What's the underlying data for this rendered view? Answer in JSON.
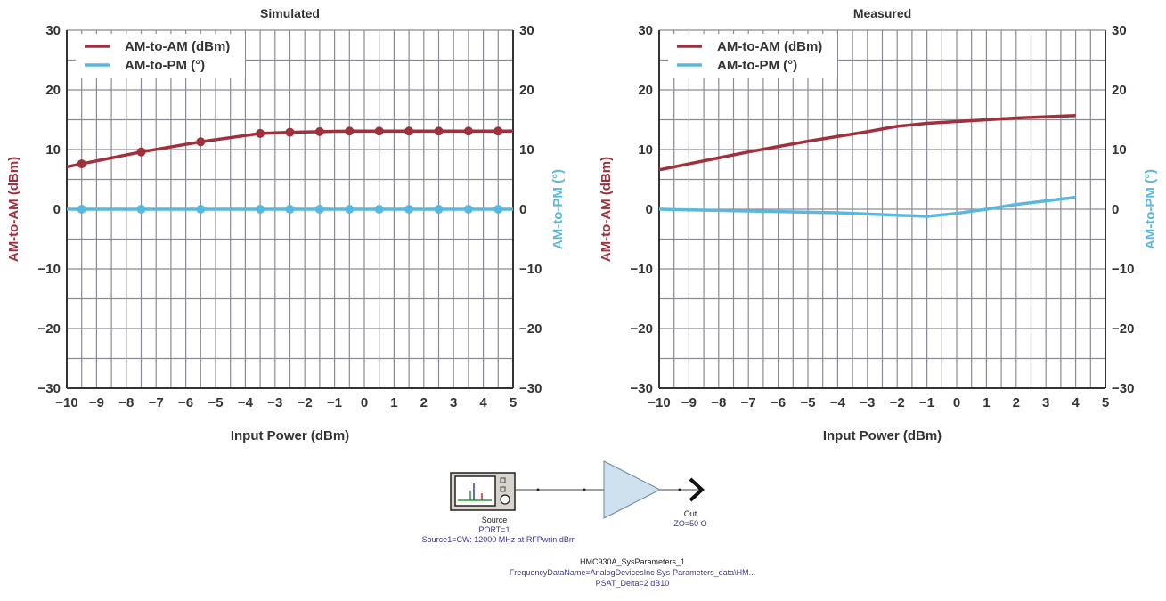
{
  "chart_data": [
    {
      "type": "line",
      "title": "Simulated",
      "xlabel": "Input Power (dBm)",
      "ylabel": "AM-to-AM (dBm)",
      "y2label": "AM-to-PM (°)",
      "xlim": [
        -10,
        5
      ],
      "ylim": [
        -30,
        30
      ],
      "y2lim": [
        -30,
        30
      ],
      "xticks": [
        "−10",
        "−9",
        "−8",
        "−7",
        "−6",
        "−5",
        "−4",
        "−3",
        "−2",
        "−1",
        "0",
        "1",
        "2",
        "3",
        "4",
        "5"
      ],
      "yticks": [
        "30",
        "20",
        "10",
        "0",
        "−10",
        "−20",
        "−30"
      ],
      "grid": true,
      "legend": "top-left",
      "markers": true,
      "series": [
        {
          "name": "AM-to-AM (dBm)",
          "color": "#a0303c",
          "x": [
            -10,
            -9.5,
            -7.5,
            -5.5,
            -3.5,
            -2.5,
            -1.5,
            -0.5,
            0.5,
            1.5,
            2.5,
            3.5,
            4.5,
            5
          ],
          "y": [
            7.1,
            7.6,
            9.6,
            11.3,
            12.7,
            12.9,
            13.0,
            13.1,
            13.1,
            13.1,
            13.1,
            13.1,
            13.1,
            13.1
          ],
          "marker_x": [
            -9.5,
            -7.5,
            -5.5,
            -3.5,
            -2.5,
            -1.5,
            -0.5,
            0.5,
            1.5,
            2.5,
            3.5,
            4.5
          ]
        },
        {
          "name": "AM-to-PM (°)",
          "color": "#5ab8de",
          "x": [
            -10,
            -9.5,
            -7.5,
            -5.5,
            -3.5,
            -2.5,
            -1.5,
            -0.5,
            0.5,
            1.5,
            2.5,
            3.5,
            4.5,
            5
          ],
          "y": [
            0,
            0,
            0,
            0,
            0,
            0,
            0,
            0,
            0,
            0,
            0,
            0,
            0,
            0
          ],
          "marker_x": [
            -9.5,
            -7.5,
            -5.5,
            -3.5,
            -2.5,
            -1.5,
            -0.5,
            0.5,
            1.5,
            2.5,
            3.5,
            4.5
          ]
        }
      ]
    },
    {
      "type": "line",
      "title": "Measured",
      "xlabel": "Input Power (dBm)",
      "ylabel": "AM-to-AM (dBm)",
      "y2label": "AM-to-PM (°)",
      "xlim": [
        -10,
        5
      ],
      "ylim": [
        -30,
        30
      ],
      "y2lim": [
        -30,
        30
      ],
      "xticks": [
        "−10",
        "−9",
        "−8",
        "−7",
        "−6",
        "−5",
        "−4",
        "−3",
        "−2",
        "−1",
        "0",
        "1",
        "2",
        "3",
        "4",
        "5"
      ],
      "yticks": [
        "30",
        "20",
        "10",
        "0",
        "−10",
        "−20",
        "−30"
      ],
      "grid": true,
      "legend": "top-left",
      "markers": false,
      "series": [
        {
          "name": "AM-to-AM (dBm)",
          "color": "#a0303c",
          "x": [
            -10,
            -9,
            -8,
            -7,
            -6,
            -5,
            -4,
            -3,
            -2,
            -1,
            0,
            1,
            2,
            3,
            4
          ],
          "y": [
            6.6,
            7.6,
            8.6,
            9.6,
            10.5,
            11.4,
            12.2,
            13.0,
            13.9,
            14.4,
            14.7,
            15.0,
            15.3,
            15.5,
            15.7
          ]
        },
        {
          "name": "AM-to-PM (°)",
          "color": "#5ab8de",
          "x": [
            -10,
            -8,
            -6,
            -4,
            -2,
            -1,
            0,
            1,
            2,
            3,
            4
          ],
          "y": [
            0,
            -0.2,
            -0.4,
            -0.6,
            -1.0,
            -1.2,
            -0.7,
            0,
            0.8,
            1.4,
            2.0
          ]
        }
      ]
    }
  ],
  "diagram": {
    "source_label": "Source",
    "source_port": "PORT=1",
    "source_desc": "Source1=CW: 12000 MHz at RFPwrin dBm",
    "out_label": "Out",
    "out_z": "ZO=50 O",
    "amp_name": "HMC930A_SysParameters_1",
    "amp_data": "FrequencyDataName=AnalogDevicesInc Sys-Parameters_data\\HM...",
    "amp_psat": "PSAT_Delta=2 dB10"
  }
}
